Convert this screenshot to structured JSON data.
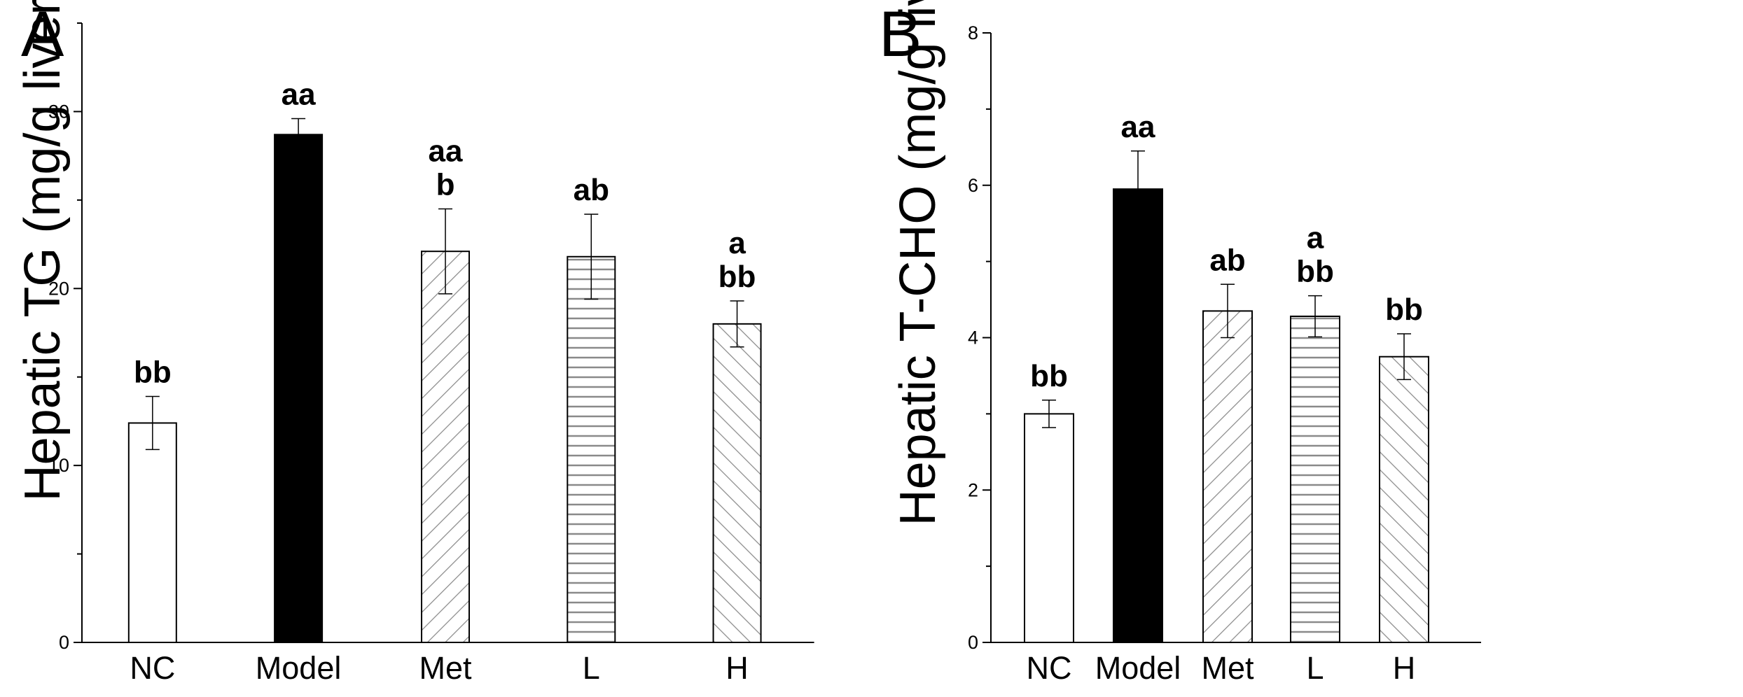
{
  "chart_data": [
    {
      "type": "bar",
      "panel": "A",
      "ylabel": "Hepatic TG (mg/g liver)",
      "ylim": [
        0,
        35
      ],
      "yticks": [
        0,
        10,
        20,
        30
      ],
      "categories": [
        "NC",
        "Model",
        "Met",
        "L",
        "H"
      ],
      "values": [
        12.4,
        28.7,
        22.1,
        21.8,
        18.0
      ],
      "errors": [
        1.5,
        0.9,
        2.4,
        2.4,
        1.3
      ],
      "fills": [
        "white",
        "black",
        "diagonal-up",
        "horizontal",
        "diagonal-down"
      ],
      "labels": [
        [
          "bb"
        ],
        [
          "aa"
        ],
        [
          "aa",
          "b"
        ],
        [
          "ab"
        ],
        [
          "a",
          "bb"
        ]
      ]
    },
    {
      "type": "bar",
      "panel": "B",
      "ylabel": "Hepatic T-CHO (mg/g liver)",
      "ylim": [
        0,
        8
      ],
      "yticks": [
        0,
        2,
        4,
        6,
        8
      ],
      "categories": [
        "NC",
        "Model",
        "Met",
        "L",
        "H"
      ],
      "values": [
        3.0,
        5.95,
        4.35,
        4.28,
        3.75
      ],
      "errors": [
        0.18,
        0.5,
        0.35,
        0.27,
        0.3
      ],
      "fills": [
        "white",
        "black",
        "diagonal-up",
        "horizontal",
        "diagonal-down"
      ],
      "labels": [
        [
          "bb"
        ],
        [
          "aa"
        ],
        [
          "ab"
        ],
        [
          "a",
          "bb"
        ],
        [
          "bb"
        ]
      ]
    }
  ],
  "colors": {
    "bar_black": "#000000",
    "bar_white": "#ffffff",
    "hatch": "#8a8a8a",
    "axis": "#000000"
  }
}
